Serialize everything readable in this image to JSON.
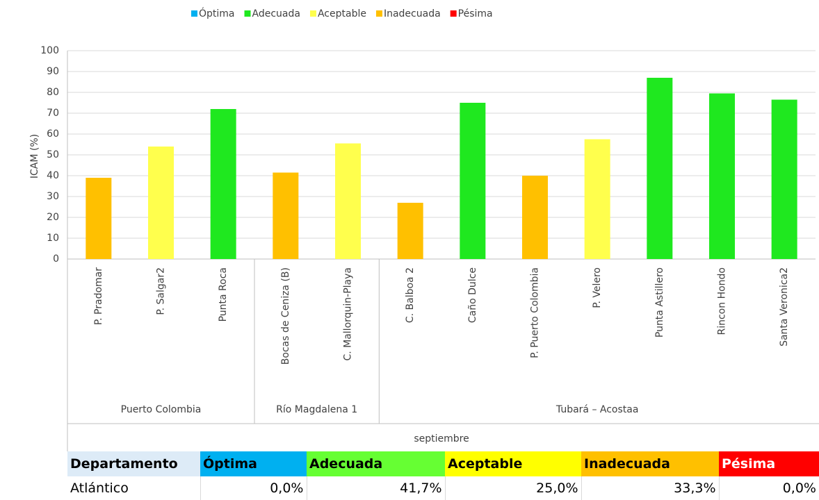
{
  "chart_data": {
    "type": "bar",
    "y_label": "ICAM (%)",
    "ylim": [
      0,
      100
    ],
    "yticks": [
      0,
      10,
      20,
      30,
      40,
      50,
      60,
      70,
      80,
      90,
      100
    ],
    "grid": true,
    "legend": [
      {
        "name": "Óptima",
        "color": "#00b0f0"
      },
      {
        "name": "Adecuada",
        "color": "#1fe81f"
      },
      {
        "name": "Aceptable",
        "color": "#ffff4d"
      },
      {
        "name": "Inadecuada",
        "color": "#ffc000"
      },
      {
        "name": "Pésima",
        "color": "#ff0000"
      }
    ],
    "groups": [
      {
        "label": "Puerto Colombia",
        "categories": [
          "P. Pradomar",
          "P. Salgar2",
          "Punta Roca"
        ],
        "values": [
          39,
          54,
          72
        ],
        "colors": [
          "#ffc000",
          "#ffff4d",
          "#1fe81f"
        ]
      },
      {
        "label": "Río Magdalena 1",
        "categories": [
          "Bocas de Ceniza (B)",
          "C. Mallorquin-Playa"
        ],
        "values": [
          41.5,
          55.5
        ],
        "colors": [
          "#ffc000",
          "#ffff4d"
        ]
      },
      {
        "label": "Tubará – Acostaa",
        "categories": [
          "C. Balboa 2",
          "Caño Dulce",
          "P. Puerto Colombia",
          "P. Velero",
          "Punta Astillero",
          "Rincon Hondo",
          "Santa Veronica2"
        ],
        "values": [
          27,
          75,
          40,
          57.5,
          87,
          79.5,
          76.5
        ],
        "colors": [
          "#ffc000",
          "#1fe81f",
          "#ffc000",
          "#ffff4d",
          "#1fe81f",
          "#1fe81f",
          "#1fe81f"
        ]
      }
    ],
    "period": "septiembre"
  },
  "table": {
    "header": [
      {
        "label": "Departamento",
        "color": "#ddebf7",
        "text_color": "#000000"
      },
      {
        "label": "Óptima",
        "color": "#00b0f0",
        "text_color": "#000000"
      },
      {
        "label": "Adecuada",
        "color": "#66ff33",
        "text_color": "#000000"
      },
      {
        "label": "Aceptable",
        "color": "#ffff00",
        "text_color": "#000000"
      },
      {
        "label": "Inadecuada",
        "color": "#ffc000",
        "text_color": "#000000"
      },
      {
        "label": "Pésima",
        "color": "#ff0000",
        "text_color": "#ffffff"
      }
    ],
    "rows": [
      [
        "Atlántico",
        "0,0%",
        "41,7%",
        "25,0%",
        "33,3%",
        "0,0%"
      ]
    ]
  }
}
